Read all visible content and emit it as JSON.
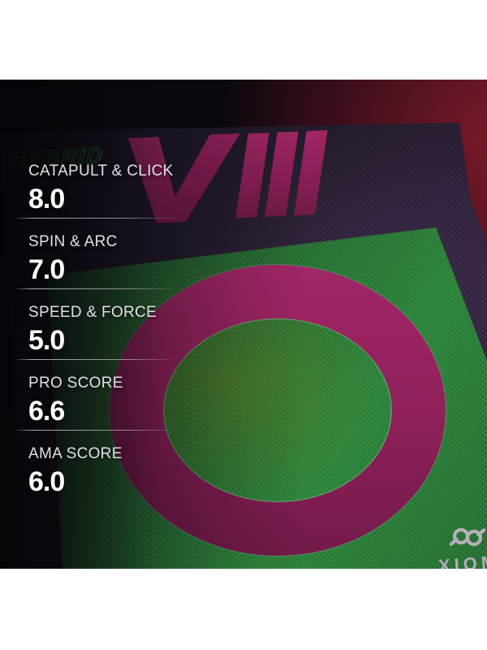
{
  "image": {
    "series": "HYBRID",
    "model": "VIII",
    "brand": "XIOM",
    "stats": [
      {
        "label": "CATAPULT & CLICK",
        "value": "8.0"
      },
      {
        "label": "SPIN & ARC",
        "value": "7.0"
      },
      {
        "label": "SPEED & FORCE",
        "value": "5.0"
      },
      {
        "label": "PRO SCORE",
        "value": "6.6"
      },
      {
        "label": "AMA SCORE",
        "value": "6.0"
      }
    ],
    "colors": {
      "accent_magenta": "#97215f",
      "sheet_green": "#2e8040",
      "board_purple": "#241c2c",
      "glow_red": "#6e1322",
      "logo_silver": "#b2acb7",
      "label_text": "#e2e1e6",
      "value_text": "#ffffff"
    }
  }
}
